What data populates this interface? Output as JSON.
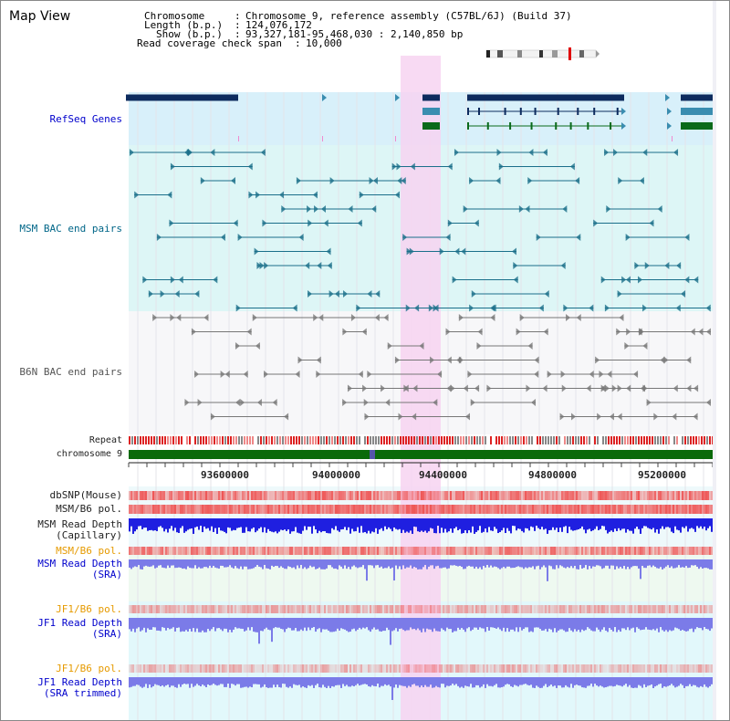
{
  "title": "Map View",
  "info": {
    "chromosome_label": "Chromosome",
    "chromosome_value": "Chromosome 9, reference assembly (C57BL/6J) (Build 37)",
    "length_label": "Length (b.p.)",
    "length_value": "124,076,172",
    "show_label": "Show (b.p.)",
    "show_value": "93,327,181-95,468,030 : 2,140,850 bp",
    "coverage_label": "Read coverage check span",
    "coverage_value": "10,000"
  },
  "tracks": {
    "refseq": "RefSeq Genes",
    "msm_bac": "MSM BAC end pairs",
    "b6n_bac": "B6N BAC end pairs",
    "repeat": "Repeat",
    "chrom": "chromosome 9",
    "dbsnp": "dbSNP(Mouse)",
    "msm_b6_pol_1": "MSM/B6 pol.",
    "msm_depth_cap_1": "MSM Read Depth",
    "msm_depth_cap_2": "(Capillary)",
    "msm_b6_pol_2": "MSM/B6 pol.",
    "msm_depth_sra_1": "MSM Read Depth",
    "msm_depth_sra_2": "(SRA)",
    "jf1_pol_1": "JF1/B6 pol.",
    "jf1_depth_1": "JF1 Read Depth",
    "jf1_depth_2": "(SRA)",
    "jf1_pol_2": "JF1/B6 pol.",
    "jf1_trim_1": "JF1 Read Depth",
    "jf1_trim_2": "(SRA trimmed)"
  },
  "axis_ticks": [
    "93600000",
    "94000000",
    "94400000",
    "94800000",
    "95200000"
  ],
  "colors": {
    "highlight": "#f7d4f1",
    "refseq_bg": "#d8f0fa",
    "msm_bg": "#ddf6f6",
    "b6n_bg": "#f7f7f9",
    "gene_dark": "#0d2b5e",
    "gene_mid": "#3a8db0",
    "gene_green": "#0a6a1a",
    "chrom_green": "#0a6a0a",
    "bac_teal": "#1a6f8a",
    "bac_gray": "#777777",
    "depth_blue": "#1f1fe0",
    "depth_light": "#7b7be8",
    "pol_red": "#ee5555"
  }
}
